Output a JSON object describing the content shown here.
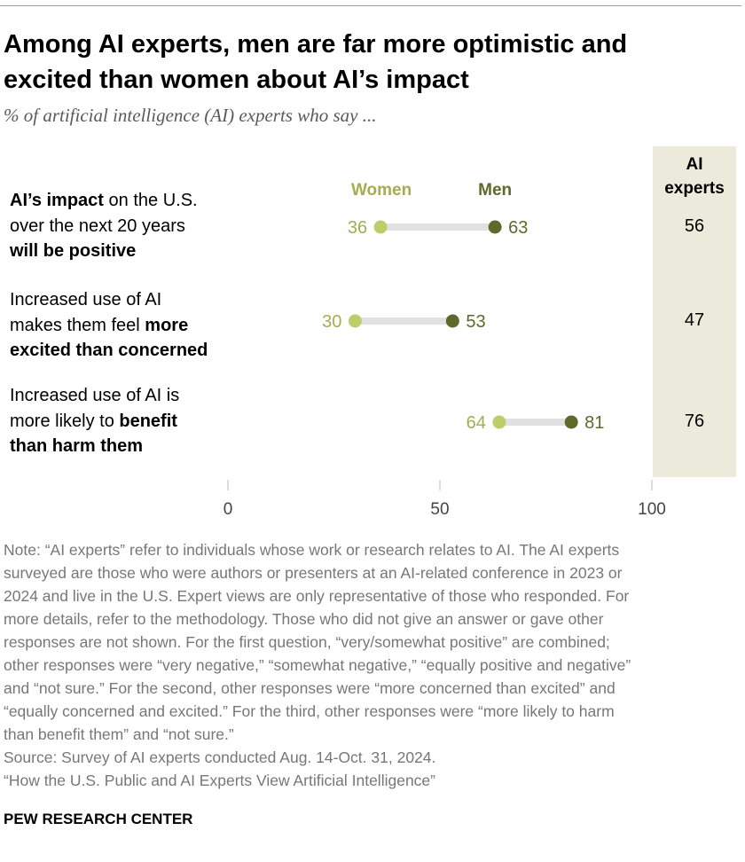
{
  "title_lines": [
    "Among AI experts, men are far more optimistic and",
    "excited than women about AI’s impact"
  ],
  "subtitle": "% of artificial intelligence (AI) experts who say ...",
  "colors": {
    "women": "#bccd6a",
    "men": "#5d6a2a",
    "women_text": "#a3ad52",
    "men_text": "#5d6a2a",
    "bar": "#e1e1e1",
    "panel": "#ecebdb"
  },
  "chart_data": {
    "type": "dot-plot",
    "legend": {
      "women": "Women",
      "men": "Men"
    },
    "total_header": [
      "AI",
      "experts"
    ],
    "categories": [
      "AI’s impact on the U.S. over the next 20 years will be positive",
      "Increased use of AI makes them feel more excited than concerned",
      "Increased use of AI is more likely to benefit than harm them"
    ],
    "category_lines": [
      [
        [
          {
            "t": "AI’s impact",
            "b": true
          },
          {
            "t": " on the U.S.",
            "b": false
          }
        ],
        [
          {
            "t": "over the next 20 years",
            "b": false
          }
        ],
        [
          {
            "t": "will be positive",
            "b": true
          }
        ]
      ],
      [
        [
          {
            "t": "Increased use of AI",
            "b": false
          }
        ],
        [
          {
            "t": "makes them feel ",
            "b": false
          },
          {
            "t": "more",
            "b": true
          }
        ],
        [
          {
            "t": "excited than concerned",
            "b": true
          }
        ]
      ],
      [
        [
          {
            "t": "Increased use of AI is",
            "b": false
          }
        ],
        [
          {
            "t": "more likely to ",
            "b": false
          },
          {
            "t": "benefit",
            "b": true
          }
        ],
        [
          {
            "t": "than harm them",
            "b": true
          }
        ]
      ]
    ],
    "series": [
      {
        "name": "Women",
        "values": [
          36,
          30,
          64
        ]
      },
      {
        "name": "Men",
        "values": [
          63,
          53,
          81
        ]
      }
    ],
    "ai_experts": [
      56,
      47,
      76
    ],
    "xlim": [
      0,
      100
    ],
    "xticks": [
      0,
      50,
      100
    ]
  },
  "notes": [
    "Note: “AI experts” refer to individuals whose work or research relates to AI. The AI experts",
    "surveyed are those who were authors or presenters at an AI-related conference in 2023 or",
    "2024 and live in the U.S. Expert views are only representative of those who responded. For",
    "more details, refer to the methodology. Those who did not give an answer or gave other",
    "responses are not shown. For the first question, “very/somewhat positive” are combined;",
    "other responses were “very negative,” “somewhat negative,” “equally positive and negative”",
    "and “not sure.” For the second, other responses were “more concerned than excited” and",
    "“equally concerned and excited.” For the third, other responses were “more likely to harm",
    "than benefit them” and “not sure.”",
    "Source: Survey of AI experts conducted Aug. 14-Oct. 31, 2024.",
    "“How the U.S. Public and AI Experts View Artificial Intelligence”"
  ],
  "brand": "PEW RESEARCH CENTER"
}
